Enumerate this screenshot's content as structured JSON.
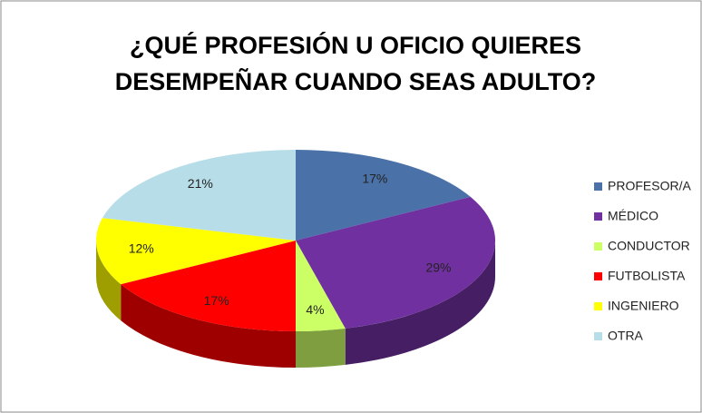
{
  "chart_data": {
    "type": "pie",
    "title": "¿QUÉ PROFESIÓN U OFICIO QUIERES DESEMPEÑAR CUANDO SEAS ADULTO?",
    "categories": [
      "PROFESOR/A",
      "MÉDICO",
      "CONDUCTOR",
      "FUTBOLISTA",
      "INGENIERO",
      "OTRA"
    ],
    "values": [
      17,
      29,
      4,
      17,
      12,
      21
    ],
    "value_labels": [
      "17%",
      "29%",
      "4%",
      "17%",
      "12%",
      "21%"
    ],
    "colors": [
      "#4a72a8",
      "#7030a0",
      "#ccff66",
      "#ff0000",
      "#ffff00",
      "#b7dde8"
    ],
    "legend": "right"
  }
}
